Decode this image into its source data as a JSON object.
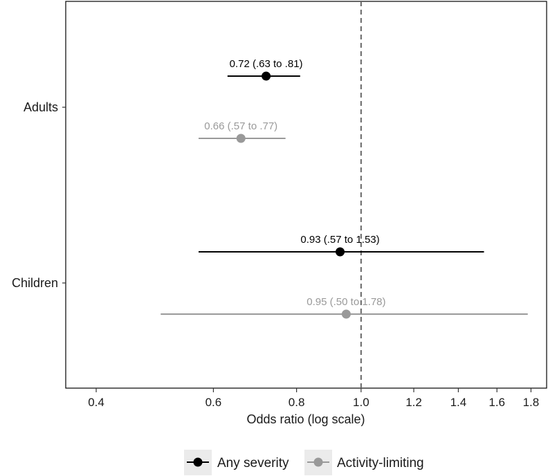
{
  "chart_data": {
    "type": "forest",
    "title": "",
    "xlabel": "Odds ratio (log scale)",
    "ylabel": "",
    "xscale": "log",
    "xlim": [
      0.36,
      1.9
    ],
    "xticks": [
      0.4,
      0.6,
      0.8,
      1.0,
      1.2,
      1.4,
      1.6,
      1.8
    ],
    "xtick_labels": [
      "0.4",
      "0.6",
      "0.8",
      "1.0",
      "1.2",
      "1.4",
      "1.6",
      "1.8"
    ],
    "reference_line": 1.0,
    "categories": [
      "Adults",
      "Children"
    ],
    "series": [
      {
        "name": "Any severity",
        "color": "#000000",
        "points": [
          {
            "category": "Adults",
            "estimate": 0.72,
            "lower": 0.63,
            "upper": 0.81,
            "label": "0.72 (.63 to .81)"
          },
          {
            "category": "Children",
            "estimate": 0.93,
            "lower": 0.57,
            "upper": 1.53,
            "label": "0.93 (.57 to 1.53)"
          }
        ]
      },
      {
        "name": "Activity-limiting",
        "color": "#999999",
        "points": [
          {
            "category": "Adults",
            "estimate": 0.66,
            "lower": 0.57,
            "upper": 0.77,
            "label": "0.66 (.57 to .77)"
          },
          {
            "category": "Children",
            "estimate": 0.95,
            "lower": 0.5,
            "upper": 1.78,
            "label": "0.95 (.50 to 1.78)"
          }
        ]
      }
    ],
    "legend": {
      "position": "bottom"
    },
    "grid": false
  }
}
